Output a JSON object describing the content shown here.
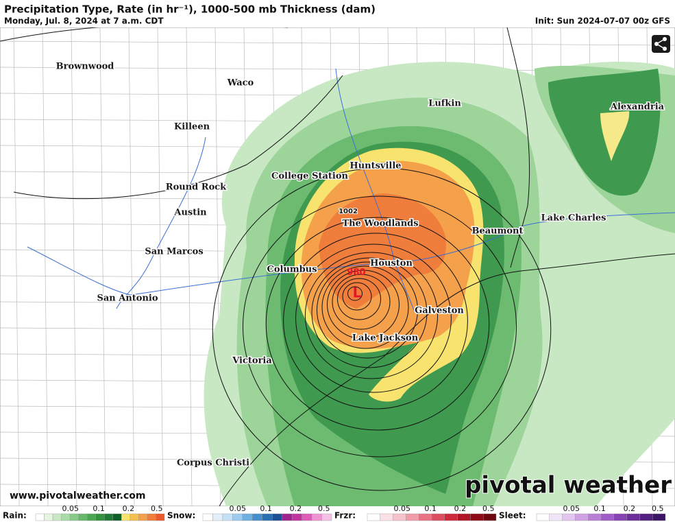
{
  "header": {
    "title": "Precipitation Type, Rate (in hr⁻¹), 1000-500 mb Thickness (dam)",
    "valid": "Monday, Jul. 8, 2024 at 7 a.m. CDT",
    "init": "Init: Sun 2024-07-07 00z GFS"
  },
  "map": {
    "cities": [
      "Brownwood",
      "Waco",
      "Lufkin",
      "Alexandria",
      "Killeen",
      "Huntsville",
      "College Station",
      "Round Rock",
      "Austin",
      "The Woodlands",
      "Beaumont",
      "Lake Charles",
      "San Marcos",
      "Columbus",
      "Houston",
      "San Antonio",
      "Galveston",
      "Lake Jackson",
      "Victoria",
      "Corpus Christi"
    ],
    "pressure_labels": [
      "1002",
      "980"
    ],
    "low_symbol": "L"
  },
  "footer": {
    "url": "www.pivotalweather.com",
    "brand": "pivotal weather"
  },
  "legend": [
    {
      "label": "Rain:",
      "ticks": [
        "0.05",
        "0.1",
        "0.2",
        "0.5"
      ]
    },
    {
      "label": "Snow:",
      "ticks": [
        "0.05",
        "0.1",
        "0.2",
        "0.5"
      ]
    },
    {
      "label": "Frzr:",
      "ticks": [
        "0.05",
        "0.1",
        "0.2",
        "0.5"
      ]
    },
    {
      "label": "Sleet:",
      "ticks": [
        "0.05",
        "0.1",
        "0.2",
        "0.5"
      ]
    }
  ]
}
